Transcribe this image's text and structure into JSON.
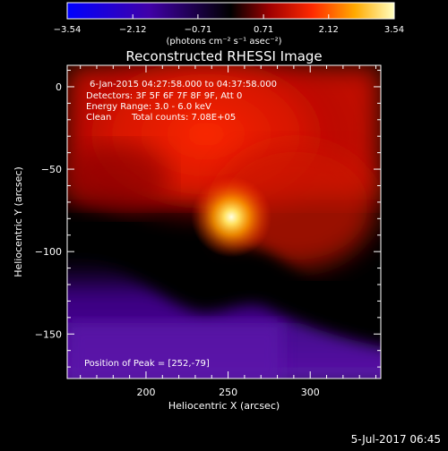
{
  "chart_data": {
    "type": "heatmap",
    "title": "Reconstructed RHESSI Image",
    "xlabel": "Heliocentric X (arcsec)",
    "ylabel": "Heliocentric Y (arcsec)",
    "xlim": [
      152,
      343
    ],
    "ylim": [
      -177,
      13
    ],
    "xticks": [
      200,
      250,
      300
    ],
    "yticks": [
      0,
      -50,
      -100,
      -150
    ],
    "colorbar": {
      "min": -3.54,
      "max": 3.54,
      "ticks": [
        "−3.54",
        "−2.12",
        "−0.71",
        "0.71",
        "2.12",
        "3.54"
      ],
      "unit_text": "(photons cm⁻² s⁻¹ asec⁻²)"
    },
    "annotations": [
      "6-Jan-2015 04:27:58.000 to 04:37:58.000",
      "Detectors: 3F 5F 6F 7F 8F 9F, Att 0",
      "Energy Range: 3.0 - 6.0 keV",
      "Clean",
      "Total counts: 7.08E+05"
    ],
    "peak_label": "Position of Peak = [252,-79]",
    "peak": [
      252,
      -79
    ],
    "peak_value": 3.54,
    "grid": false
  },
  "footer": {
    "date": "5-Jul-2017 06:45"
  }
}
